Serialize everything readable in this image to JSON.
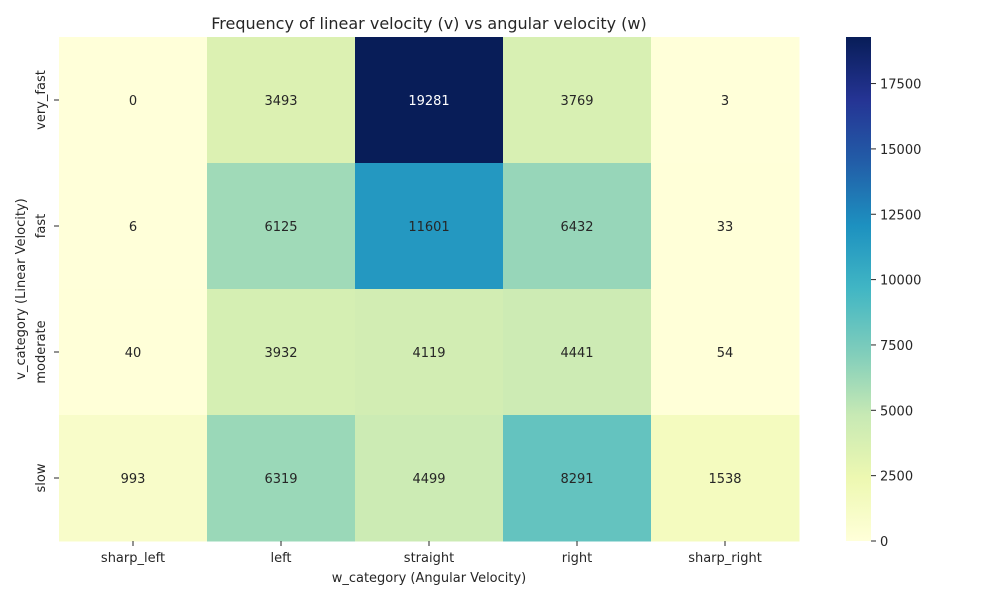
{
  "chart_data": {
    "type": "heatmap",
    "title": "Frequency of linear velocity (v) vs angular velocity (w)",
    "xlabel": "w_category (Angular Velocity)",
    "ylabel": "v_category (Linear Velocity)",
    "x_categories": [
      "sharp_left",
      "left",
      "straight",
      "right",
      "sharp_right"
    ],
    "y_categories": [
      "very_fast",
      "fast",
      "moderate",
      "slow"
    ],
    "values": [
      [
        0,
        3493,
        19281,
        3769,
        3
      ],
      [
        6,
        6125,
        11601,
        6432,
        33
      ],
      [
        40,
        3932,
        4119,
        4441,
        54
      ],
      [
        993,
        6319,
        4499,
        8291,
        1538
      ]
    ],
    "colormap": "YlGnBu",
    "colorbar": {
      "range": [
        0,
        19281
      ],
      "ticks": [
        0,
        2500,
        5000,
        7500,
        10000,
        12500,
        15000,
        17500
      ]
    }
  }
}
